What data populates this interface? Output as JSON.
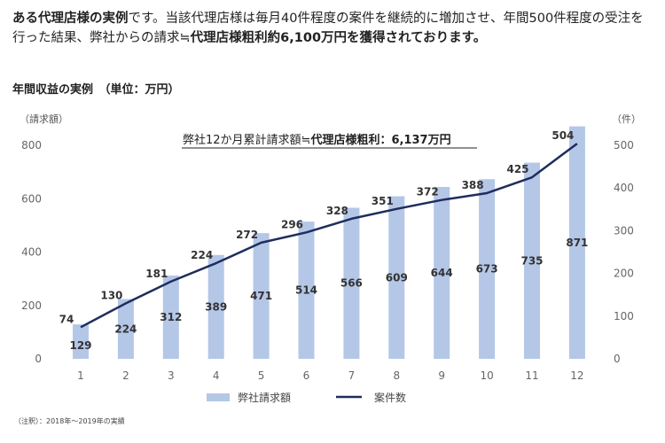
{
  "intro": {
    "bold1": "ある代理店様の実例",
    "text1": "です。当該代理店様は毎月40件程度の案件を継続的に増加させ、年間500件程度の受注を行った結果、弊社からの請求≒",
    "bold2": "代理店様粗利約6,100万円を獲得されております。"
  },
  "subtitle": "年間収益の実例　（単位：万円）",
  "footnote": "（注釈）：2018年～2019年の実績",
  "chart_data": {
    "type": "bar+line",
    "categories": [
      "1",
      "2",
      "3",
      "4",
      "5",
      "6",
      "7",
      "8",
      "9",
      "10",
      "11",
      "12"
    ],
    "series": [
      {
        "name": "弊社請求額",
        "type": "bar",
        "axis": "left",
        "values": [
          129,
          224,
          312,
          389,
          471,
          514,
          566,
          609,
          644,
          673,
          735,
          871
        ]
      },
      {
        "name": "案件数",
        "type": "line",
        "axis": "right",
        "values": [
          74,
          130,
          181,
          224,
          272,
          296,
          328,
          351,
          372,
          388,
          425,
          504
        ]
      }
    ],
    "ylabel_left": "（請求額）",
    "ylabel_right": "（件）",
    "ylim_left": [
      0,
      800
    ],
    "yticks_left": [
      0,
      200,
      400,
      600,
      800
    ],
    "ylim_right": [
      0,
      500
    ],
    "yticks_right": [
      0,
      100,
      200,
      300,
      400,
      500
    ],
    "annotation": {
      "text": "弊社12か月累計請求額≒",
      "bold": "代理店様粗利：6,137万円"
    },
    "legend_position": "bottom",
    "grid": false,
    "colors": {
      "bar": "#b4c7e7",
      "line": "#1f2d5c"
    }
  }
}
